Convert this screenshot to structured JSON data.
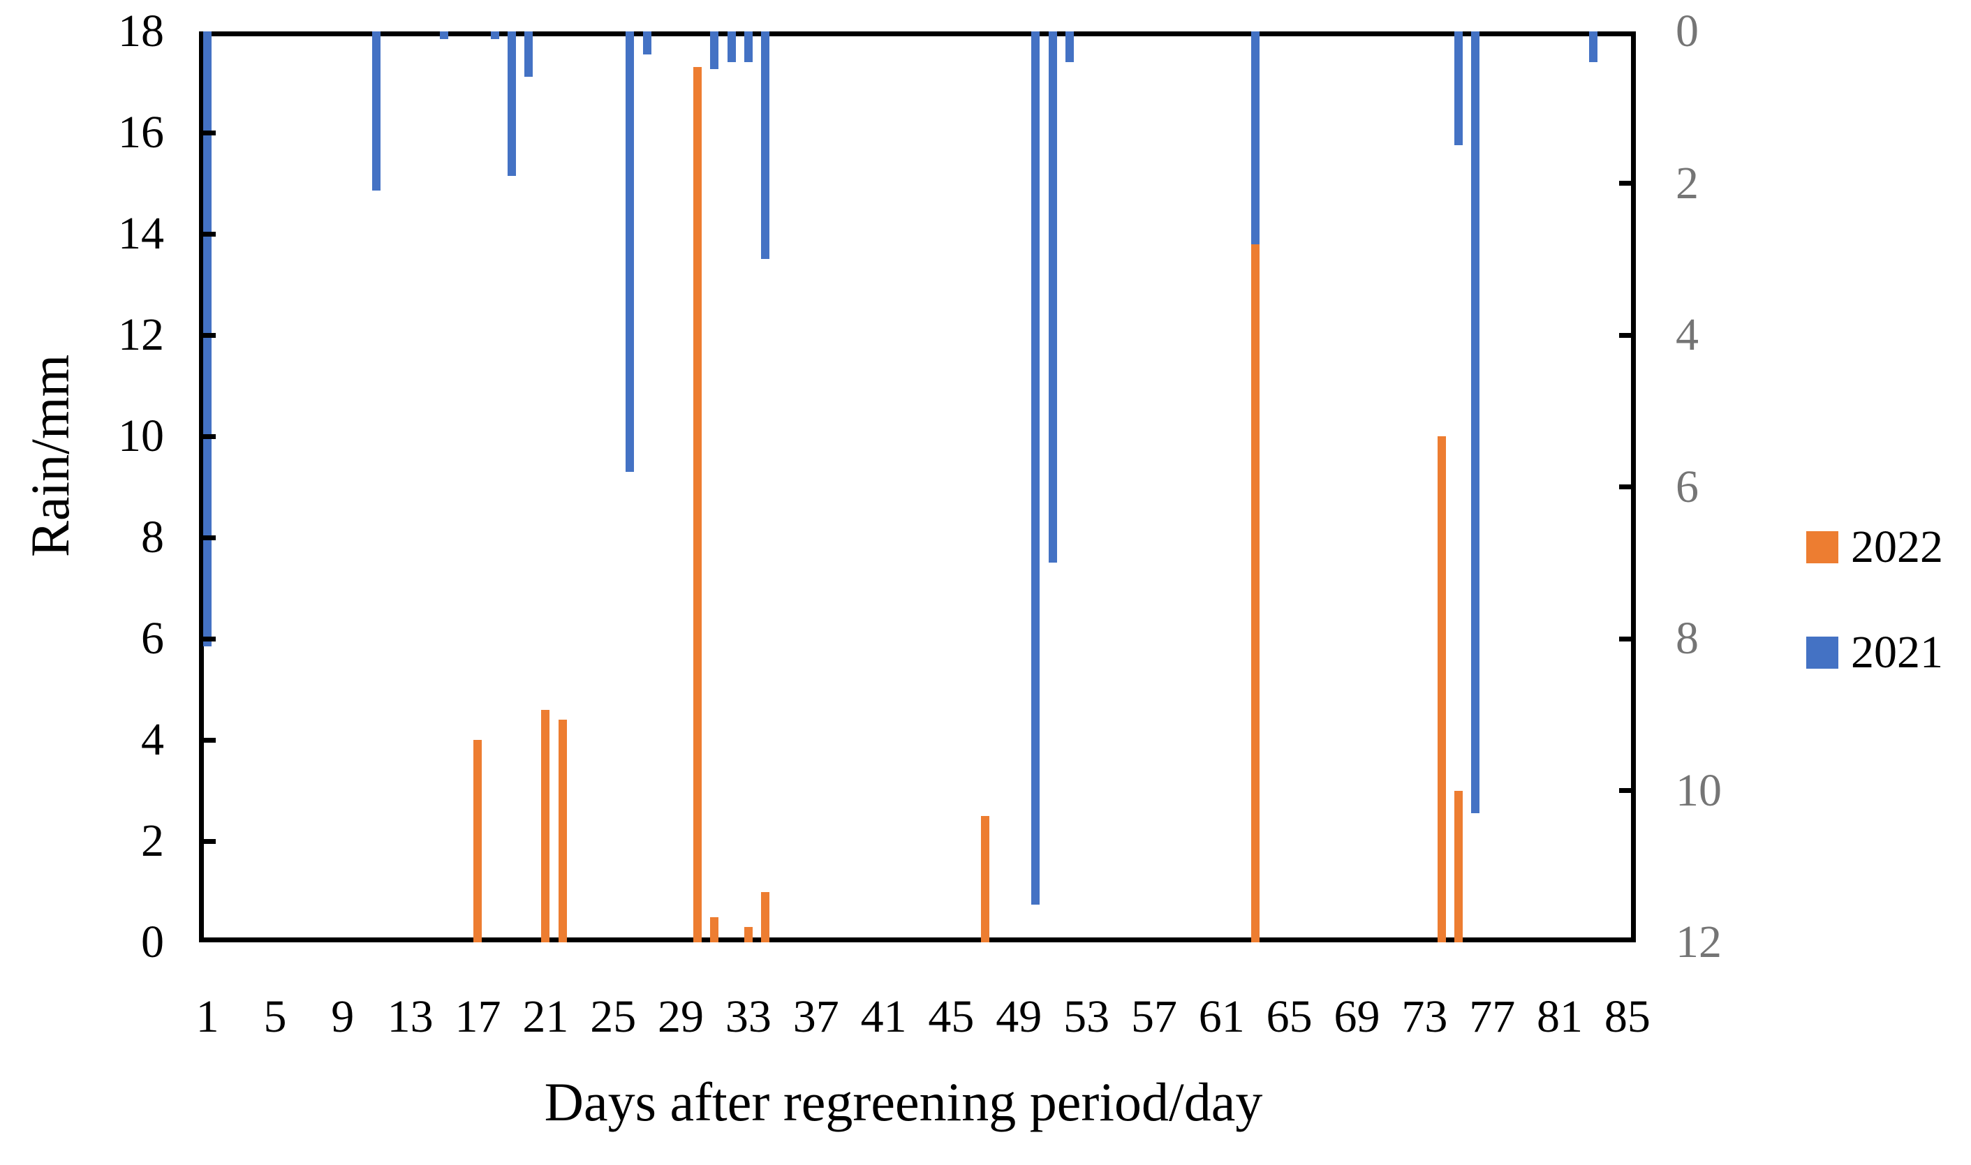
{
  "chart_data": {
    "type": "bar",
    "title": "",
    "xlabel": "Days after regreening period/day",
    "ylabel_left": "Rain/mm",
    "x_axis": {
      "min": 1,
      "max": 85,
      "tick_labels": [
        1,
        5,
        9,
        13,
        17,
        21,
        25,
        29,
        33,
        37,
        41,
        45,
        49,
        53,
        57,
        61,
        65,
        69,
        73,
        77,
        81,
        85
      ]
    },
    "left_axis": {
      "min": 0,
      "max": 18,
      "step": 2,
      "tick_labels": [
        18,
        16,
        14,
        12,
        10,
        8,
        6,
        4,
        2,
        0
      ],
      "label_color": "#000000"
    },
    "right_axis": {
      "min": 0,
      "max": 12,
      "step": 2,
      "reversed": true,
      "tick_labels": [
        0,
        2,
        4,
        6,
        8,
        10,
        12
      ],
      "label_color": "#757575"
    },
    "grid": false,
    "legend_position": "right",
    "series": [
      {
        "name": "2022",
        "color": "#ED7D31",
        "axis": "left",
        "direction": "up-from-bottom",
        "points": [
          {
            "day": 17,
            "value": 4.0
          },
          {
            "day": 21,
            "value": 4.6
          },
          {
            "day": 22,
            "value": 4.4
          },
          {
            "day": 30,
            "value": 17.3
          },
          {
            "day": 31,
            "value": 0.5
          },
          {
            "day": 33,
            "value": 0.3
          },
          {
            "day": 34,
            "value": 1.0
          },
          {
            "day": 47,
            "value": 2.5
          },
          {
            "day": 63,
            "value": 13.8
          },
          {
            "day": 74,
            "value": 10.0
          },
          {
            "day": 75,
            "value": 3.0
          }
        ]
      },
      {
        "name": "2021",
        "color": "#4472C4",
        "axis": "right",
        "direction": "down-from-top",
        "points": [
          {
            "day": 1,
            "value": 8.1
          },
          {
            "day": 11,
            "value": 2.1
          },
          {
            "day": 15,
            "value": 0.1
          },
          {
            "day": 18,
            "value": 0.1
          },
          {
            "day": 19,
            "value": 1.9
          },
          {
            "day": 20,
            "value": 0.6
          },
          {
            "day": 26,
            "value": 5.8
          },
          {
            "day": 27,
            "value": 0.3
          },
          {
            "day": 31,
            "value": 0.5
          },
          {
            "day": 32,
            "value": 0.4
          },
          {
            "day": 33,
            "value": 0.4
          },
          {
            "day": 34,
            "value": 3.0
          },
          {
            "day": 50,
            "value": 11.5
          },
          {
            "day": 51,
            "value": 7.0
          },
          {
            "day": 52,
            "value": 0.4
          },
          {
            "day": 63,
            "value": 2.8
          },
          {
            "day": 75,
            "value": 1.5
          },
          {
            "day": 76,
            "value": 10.3
          },
          {
            "day": 83,
            "value": 0.4
          }
        ]
      }
    ],
    "legend": [
      {
        "label": "2022",
        "color": "#ED7D31"
      },
      {
        "label": "2021",
        "color": "#4472C4"
      }
    ]
  },
  "layout_note": "blue 2021 bars hang from the top (reversed right axis); orange 2022 bars rise from the bottom (left axis)"
}
